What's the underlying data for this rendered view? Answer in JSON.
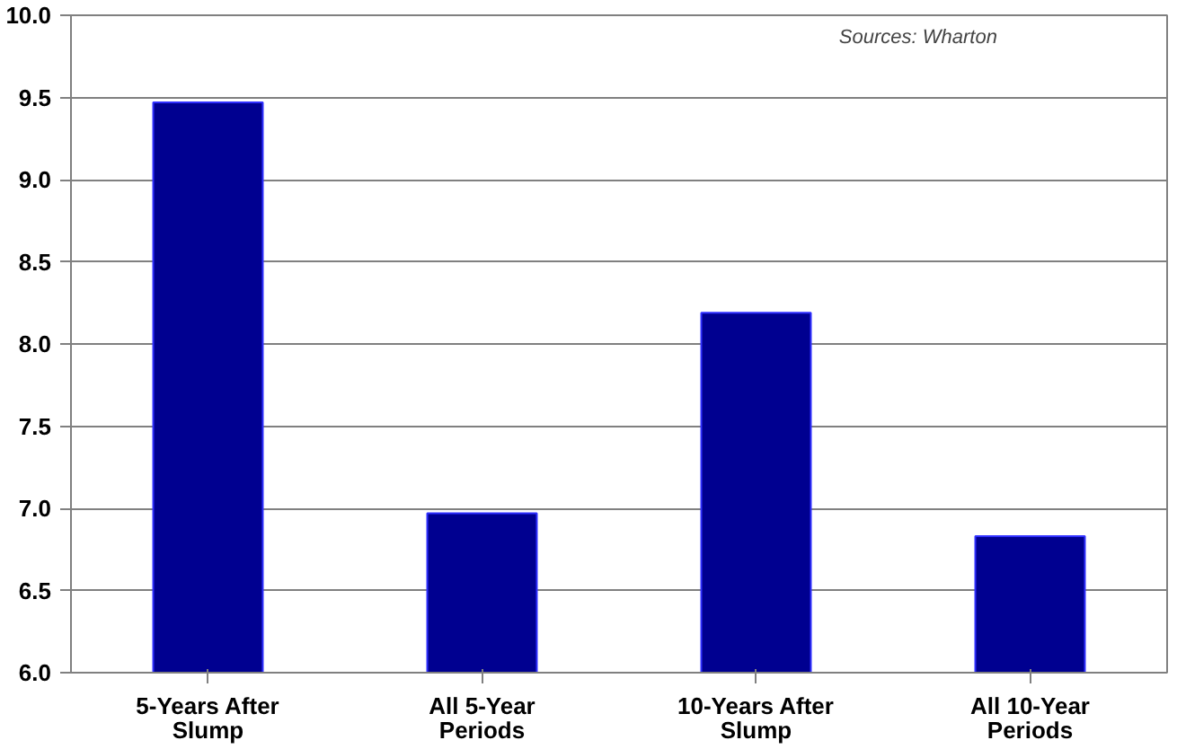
{
  "chart_data": {
    "type": "bar",
    "categories": [
      "5-Years After Slump",
      "All 5-Year Periods",
      "10-Years After Slump",
      "All 10-Year Periods"
    ],
    "values": [
      9.47,
      6.97,
      8.19,
      6.83
    ],
    "color": "#000090",
    "ylim": [
      6.0,
      10.0
    ],
    "yticks": [
      {
        "value": 6,
        "label": "6.0"
      },
      {
        "value": 6.5,
        "label": "6.5"
      },
      {
        "value": 7,
        "label": "7.0"
      },
      {
        "value": 7.5,
        "label": "7.5"
      },
      {
        "value": 8,
        "label": "8.0"
      },
      {
        "value": 8.5,
        "label": "8.5"
      },
      {
        "value": 9,
        "label": "9.0"
      },
      {
        "value": 9.5,
        "label": "9.5"
      },
      {
        "value": 10,
        "label": "10.0"
      }
    ],
    "grid": "y",
    "annotations": [
      "Sources:  Wharton"
    ]
  }
}
